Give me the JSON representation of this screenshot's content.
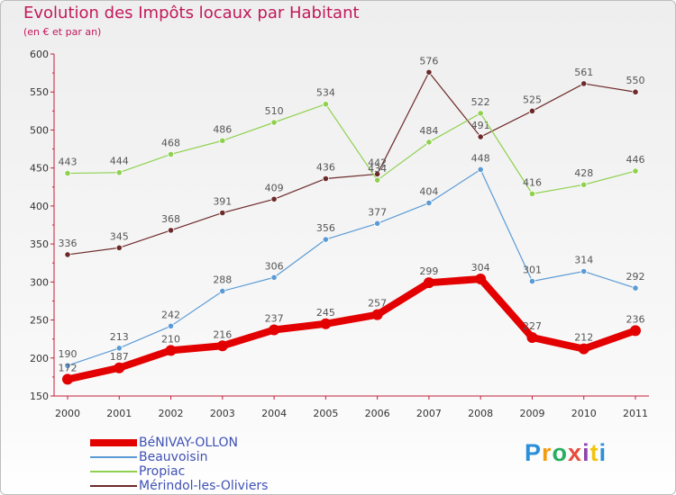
{
  "title": "Evolution des Impôts locaux par Habitant",
  "subtitle": "(en € et par an)",
  "brand": {
    "letters": [
      "P",
      "r",
      "o",
      "x",
      "i",
      "t",
      "i"
    ],
    "colors": [
      "#2a8fd9",
      "#f39c12",
      "#27ae60",
      "#e74c3c",
      "#8e44ad",
      "#f1c40f",
      "#2a8fd9"
    ]
  },
  "chart_data": {
    "type": "line",
    "title": "Evolution des Impôts locaux par Habitant",
    "subtitle": "(en € et par an)",
    "xlabel": "",
    "ylabel": "",
    "categories": [
      "2000",
      "2001",
      "2002",
      "2003",
      "2004",
      "2005",
      "2006",
      "2007",
      "2008",
      "2009",
      "2010",
      "2011"
    ],
    "ylim": [
      150,
      600
    ],
    "yticks": [
      "150",
      "200",
      "250",
      "300",
      "350",
      "400",
      "450",
      "500",
      "550",
      "600"
    ],
    "legend_position": "bottom-left",
    "series": [
      {
        "name": "BéNIVAY-OLLON",
        "color": "#e30000",
        "values": [
          172,
          187,
          210,
          216,
          237,
          245,
          257,
          299,
          304,
          227,
          212,
          236
        ],
        "labels": [
          "172",
          "187",
          "210",
          "216",
          "237",
          "245",
          "257",
          "299",
          "304",
          "227",
          "212",
          "236"
        ]
      },
      {
        "name": "Beauvoisin",
        "color": "#5b9bd5",
        "values": [
          190,
          213,
          242,
          288,
          306,
          356,
          377,
          404,
          448,
          301,
          314,
          292
        ],
        "labels": [
          "190",
          "213",
          "242",
          "288",
          "306",
          "356",
          "377",
          "404",
          "448",
          "301",
          "314",
          "292"
        ]
      },
      {
        "name": "Propiac",
        "color": "#8fd14f",
        "values": [
          443,
          444,
          468,
          486,
          510,
          534,
          434,
          484,
          522,
          416,
          428,
          446
        ],
        "labels": [
          "443",
          "444",
          "468",
          "486",
          "510",
          "534",
          "434",
          "484",
          "522",
          "416",
          "428",
          "446"
        ]
      },
      {
        "name": "Mérindol-les-Oliviers",
        "color": "#6d2a2a",
        "values": [
          336,
          345,
          368,
          391,
          409,
          436,
          442,
          576,
          491,
          525,
          561,
          550
        ],
        "labels": [
          "336",
          "345",
          "368",
          "391",
          "409",
          "436",
          "442",
          "576",
          "491",
          "525",
          "561",
          "550"
        ]
      }
    ]
  }
}
